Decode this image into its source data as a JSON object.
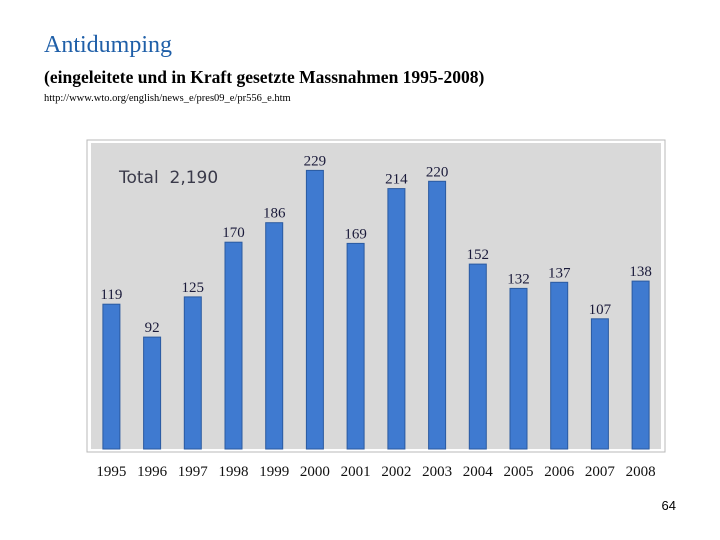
{
  "slide": {
    "title": "Antidumping",
    "subtitle": "(eingeleitete und in Kraft gesetzte Massnahmen 1995-2008)",
    "source_url": "http://www.wto.org/english/news_e/pres09_e/pr556_e.htm",
    "page_number": "64"
  },
  "chart_data": {
    "type": "bar",
    "annotation": "Total  2,190",
    "categories": [
      "1995",
      "1996",
      "1997",
      "1998",
      "1999",
      "2000",
      "2001",
      "2002",
      "2003",
      "2004",
      "2005",
      "2006",
      "2007",
      "2008"
    ],
    "values": [
      119,
      92,
      125,
      170,
      186,
      229,
      169,
      214,
      220,
      152,
      132,
      137,
      107,
      138
    ],
    "ylim": [
      0,
      240
    ],
    "grid": false,
    "legend": "none",
    "colors": {
      "bar": "#3f7ad0",
      "bar_edge": "#2b5aa0",
      "plot_background": "#d9d9d9",
      "label_text": "#1a1a3a"
    }
  }
}
